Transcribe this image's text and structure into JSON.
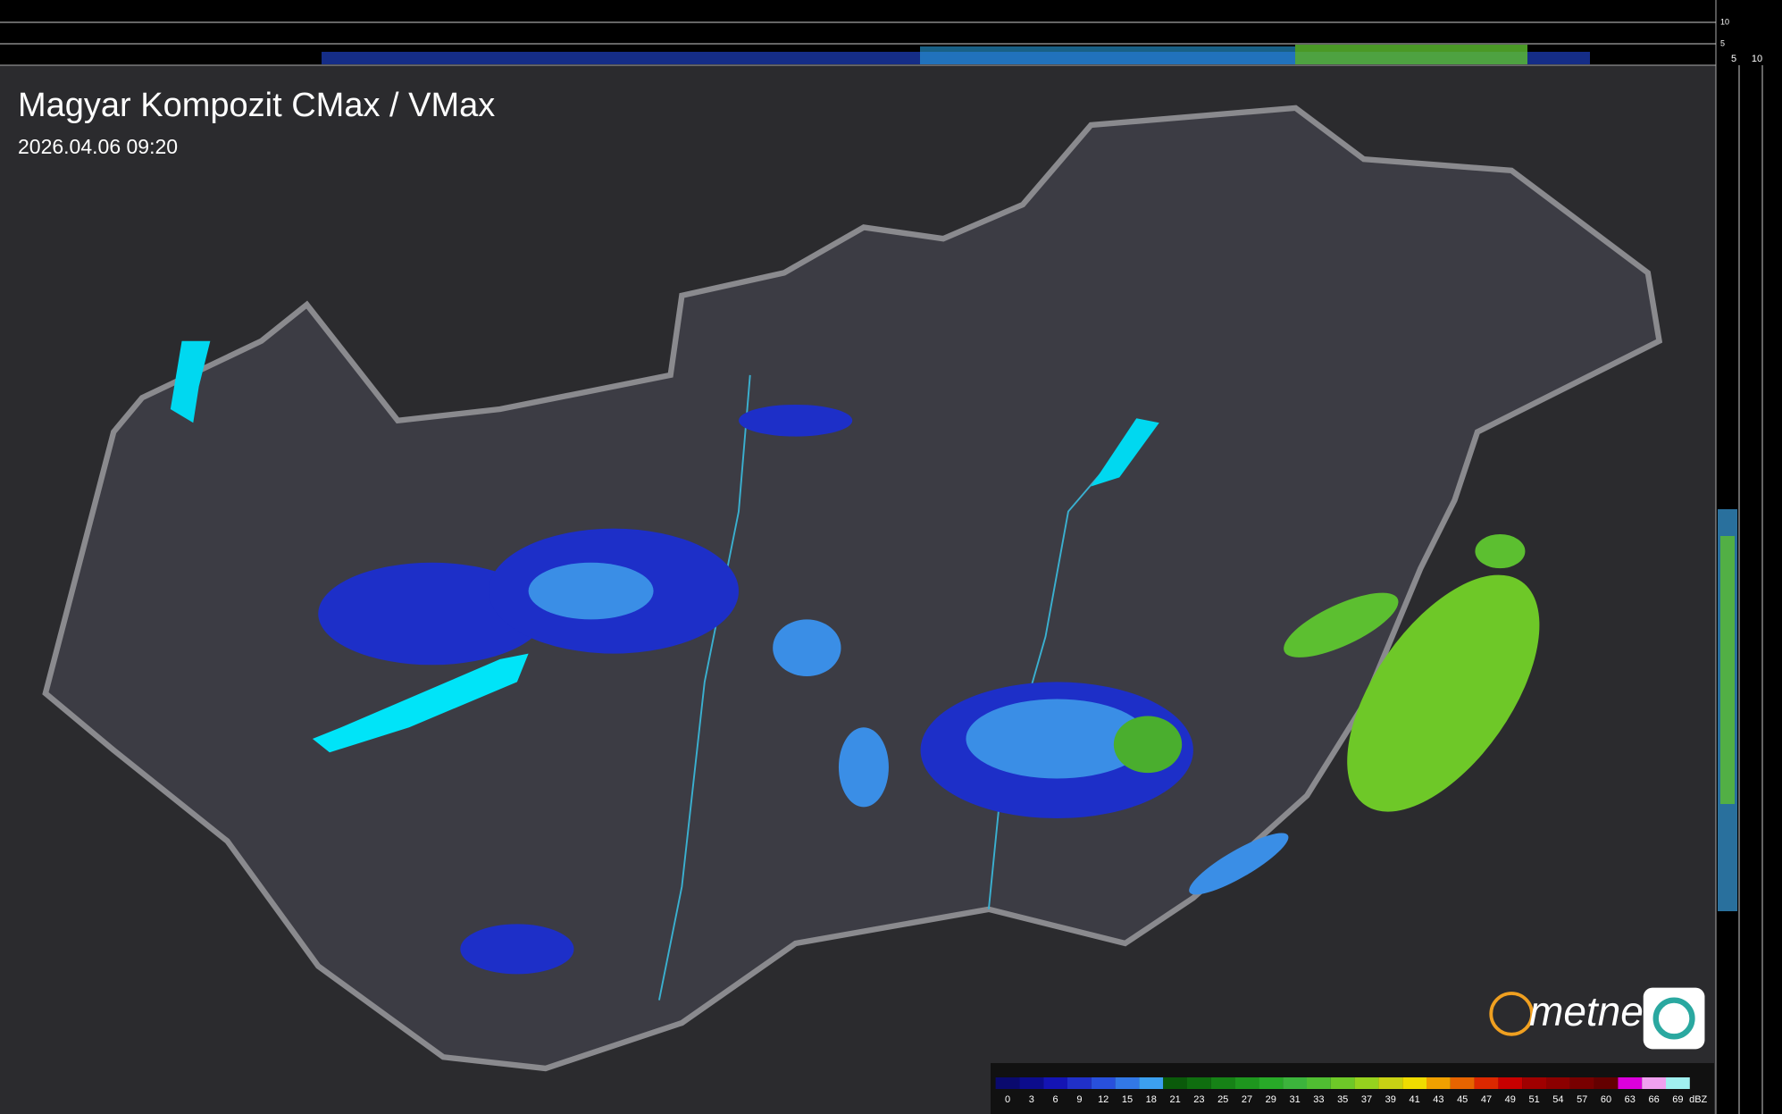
{
  "header": {
    "title": "Magyar Kompozit CMax / VMax",
    "timestamp": "2026.04.06 09:20"
  },
  "legend": {
    "unit": "dBZ",
    "ticks": [
      0,
      3,
      6,
      9,
      12,
      15,
      18,
      21,
      23,
      25,
      27,
      29,
      31,
      33,
      35,
      37,
      39,
      41,
      43,
      45,
      47,
      49,
      51,
      54,
      57,
      60,
      63,
      66,
      69
    ],
    "colors": [
      "#0a0a6e",
      "#0c0c8c",
      "#1414b4",
      "#2030c8",
      "#2850dc",
      "#3278e6",
      "#3ca0f0",
      "#0a5a0a",
      "#0f6e0f",
      "#168216",
      "#1e961e",
      "#28aa28",
      "#3cb43c",
      "#50be32",
      "#6ec828",
      "#96d21e",
      "#c8d214",
      "#f0dc00",
      "#f0a000",
      "#e66400",
      "#dc2800",
      "#c80000",
      "#a00000",
      "#8c0000",
      "#780000",
      "#640000",
      "#dc00dc",
      "#f0a0f0",
      "#a0f0f0"
    ]
  },
  "side_profile": {
    "top_axis": [
      10,
      5
    ],
    "right_axis": [
      5,
      10
    ]
  },
  "logo": "metnet"
}
